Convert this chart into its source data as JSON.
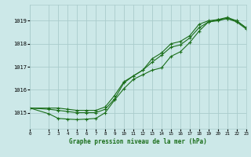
{
  "title": "Graphe pression niveau de la mer (hPa)",
  "bg_color": "#cce8e8",
  "grid_color": "#aacccc",
  "line_color": "#1a6e1a",
  "xlim": [
    0,
    23
  ],
  "ylim": [
    1014.3,
    1019.7
  ],
  "xticks": [
    0,
    2,
    3,
    4,
    5,
    6,
    7,
    8,
    9,
    10,
    11,
    12,
    13,
    14,
    15,
    16,
    17,
    18,
    19,
    20,
    21,
    22,
    23
  ],
  "yticks": [
    1015,
    1016,
    1017,
    1018,
    1019
  ],
  "series1_x": [
    0,
    2,
    3,
    4,
    5,
    6,
    7,
    8,
    9,
    10,
    11,
    12,
    13,
    14,
    15,
    16,
    17,
    18,
    19,
    20,
    21,
    22,
    23
  ],
  "series1_y": [
    1015.2,
    1014.95,
    1014.75,
    1014.72,
    1014.7,
    1014.72,
    1014.75,
    1015.0,
    1015.55,
    1016.05,
    1016.45,
    1016.65,
    1016.85,
    1016.95,
    1017.45,
    1017.65,
    1018.05,
    1018.55,
    1018.95,
    1019.0,
    1019.1,
    1019.0,
    1018.7
  ],
  "series2_x": [
    0,
    2,
    3,
    4,
    5,
    6,
    7,
    8,
    9,
    10,
    11,
    12,
    13,
    14,
    15,
    16,
    17,
    18,
    19,
    20,
    21,
    22,
    23
  ],
  "series2_y": [
    1015.2,
    1015.15,
    1015.1,
    1015.05,
    1015.0,
    1015.0,
    1015.0,
    1015.15,
    1015.6,
    1016.3,
    1016.6,
    1016.85,
    1017.2,
    1017.5,
    1017.85,
    1017.95,
    1018.25,
    1018.7,
    1018.95,
    1019.05,
    1019.1,
    1018.95,
    1018.65
  ],
  "series3_x": [
    0,
    2,
    3,
    4,
    5,
    6,
    7,
    8,
    9,
    10,
    11,
    12,
    13,
    14,
    15,
    16,
    17,
    18,
    19,
    20,
    21,
    22,
    23
  ],
  "series3_y": [
    1015.2,
    1015.2,
    1015.2,
    1015.15,
    1015.1,
    1015.1,
    1015.1,
    1015.25,
    1015.75,
    1016.35,
    1016.6,
    1016.85,
    1017.35,
    1017.6,
    1018.0,
    1018.1,
    1018.35,
    1018.85,
    1019.0,
    1019.05,
    1019.15,
    1019.0,
    1018.7
  ]
}
